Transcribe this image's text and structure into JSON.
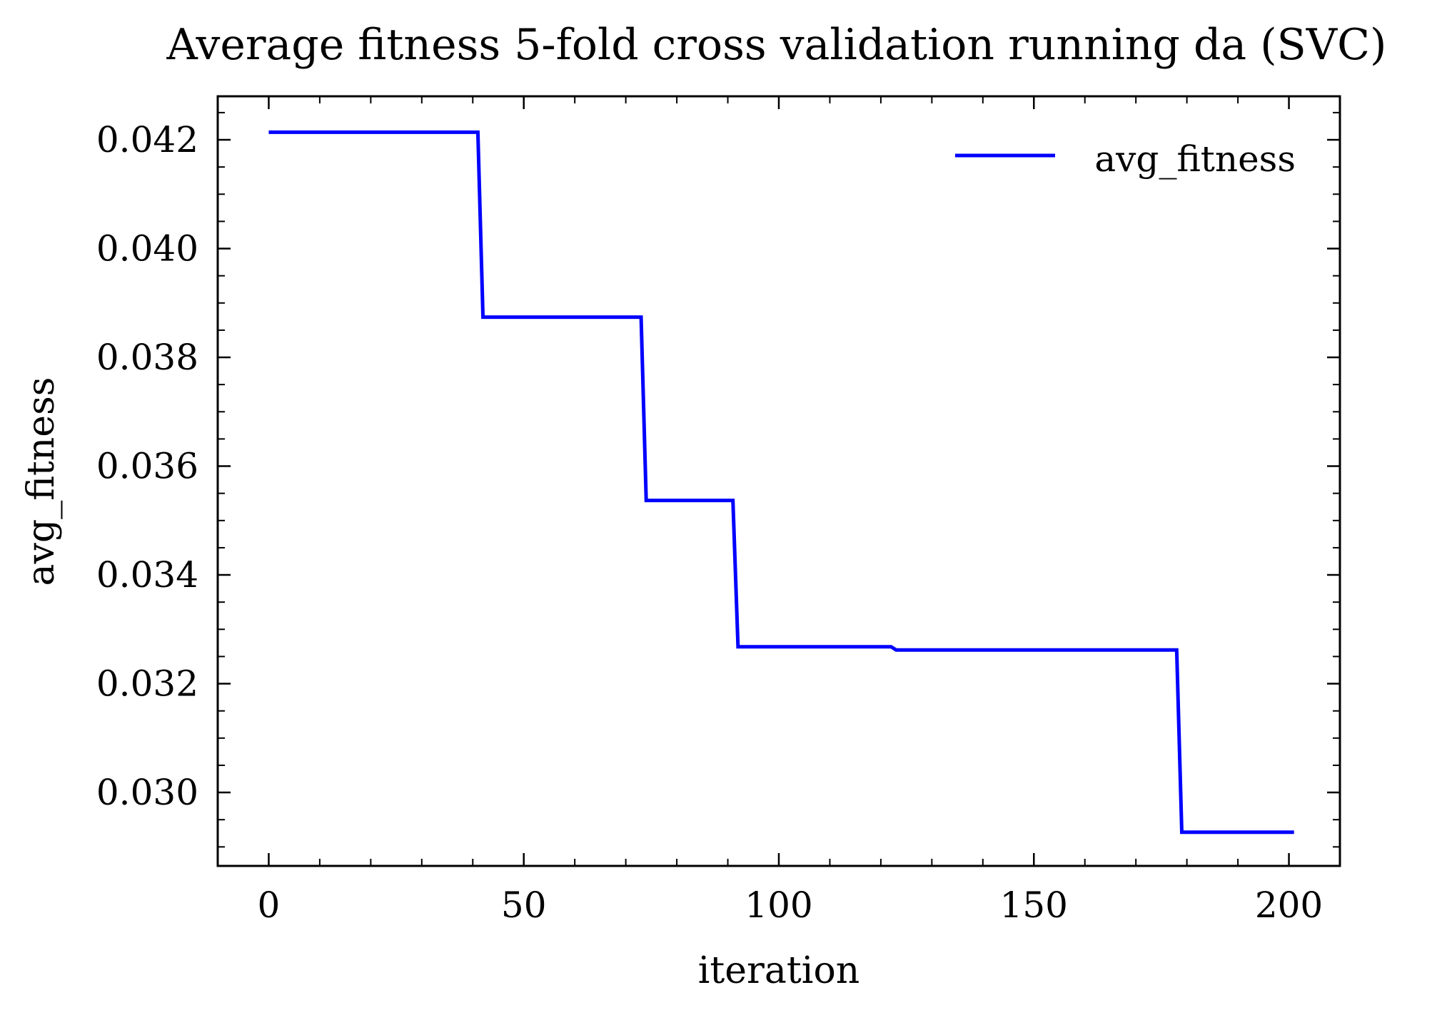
{
  "chart_data": {
    "type": "line",
    "title": "Average fitness 5-fold cross validation running da (SVC)",
    "xlabel": "iteration",
    "ylabel": "avg_fitness",
    "xlim": [
      -10,
      210
    ],
    "ylim": [
      0.02865,
      0.0428
    ],
    "xticks": [
      0,
      50,
      100,
      150,
      200
    ],
    "xtick_labels": [
      "0",
      "50",
      "100",
      "150",
      "200"
    ],
    "xminor_step": 10,
    "yticks": [
      0.03,
      0.032,
      0.034,
      0.036,
      0.038,
      0.04,
      0.042
    ],
    "ytick_labels": [
      "0.030",
      "0.032",
      "0.034",
      "0.036",
      "0.038",
      "0.040",
      "0.042"
    ],
    "yminor_step": 0.0005,
    "grid": false,
    "legend_position": "top-right",
    "series": [
      {
        "name": "avg_fitness",
        "color": "#0000ff",
        "x": [
          0,
          41,
          42,
          73,
          74,
          91,
          92,
          122,
          123,
          178,
          179,
          201
        ],
        "y": [
          0.04214,
          0.04214,
          0.03874,
          0.03874,
          0.03537,
          0.03537,
          0.03268,
          0.03268,
          0.03262,
          0.03262,
          0.02927,
          0.02927
        ]
      }
    ]
  }
}
